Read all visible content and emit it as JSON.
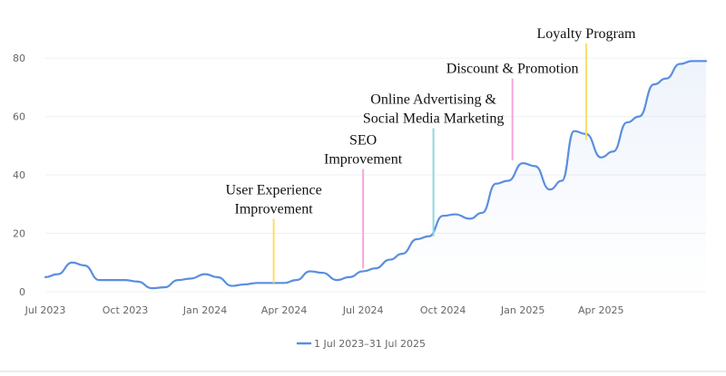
{
  "chart_data": {
    "type": "line",
    "x": [
      "2023-07-01",
      "2023-07-15",
      "2023-08-01",
      "2023-08-15",
      "2023-09-01",
      "2023-09-15",
      "2023-10-01",
      "2023-10-15",
      "2023-11-01",
      "2023-11-15",
      "2023-12-01",
      "2023-12-15",
      "2024-01-01",
      "2024-01-15",
      "2024-02-01",
      "2024-02-15",
      "2024-03-01",
      "2024-03-15",
      "2024-04-01",
      "2024-04-15",
      "2024-05-01",
      "2024-05-15",
      "2024-06-01",
      "2024-06-15",
      "2024-07-01",
      "2024-07-15",
      "2024-08-01",
      "2024-08-15",
      "2024-09-01",
      "2024-09-15",
      "2024-10-01",
      "2024-10-15",
      "2024-11-01",
      "2024-11-15",
      "2024-12-01",
      "2024-12-15",
      "2025-01-01",
      "2025-01-15",
      "2025-02-01",
      "2025-02-15",
      "2025-03-01",
      "2025-03-15",
      "2025-04-01",
      "2025-04-15",
      "2025-05-01",
      "2025-05-15",
      "2025-06-01",
      "2025-06-15",
      "2025-07-01",
      "2025-07-15",
      "2025-07-31"
    ],
    "series": [
      {
        "name": "1 Jul 2023–31 Jul 2025",
        "values": [
          5,
          6,
          10,
          9,
          4,
          4,
          4,
          3.5,
          1.2,
          1.5,
          4,
          4.5,
          6,
          5,
          2,
          2.5,
          3,
          3,
          3,
          4,
          7,
          6.5,
          4,
          5,
          7,
          8,
          11,
          13,
          18,
          19,
          26,
          26.5,
          25,
          27,
          37,
          38,
          44,
          43,
          35,
          38,
          55,
          54,
          46,
          48,
          58,
          60,
          71,
          73,
          78,
          79,
          79
        ]
      }
    ],
    "x_ticks": [
      "Jul 2023",
      "Oct 2023",
      "Jan 2024",
      "Apr 2024",
      "Jul 2024",
      "Oct 2024",
      "Jan 2025",
      "Apr 2025"
    ],
    "x_tick_dates": [
      "2023-07-01",
      "2023-10-01",
      "2024-01-01",
      "2024-04-01",
      "2024-07-01",
      "2024-10-01",
      "2025-01-01",
      "2025-04-01"
    ],
    "y_ticks": [
      0,
      20,
      40,
      60,
      80
    ],
    "ylim": [
      0,
      85
    ],
    "xlim": [
      "2023-07-01",
      "2025-07-31"
    ],
    "grid": "horizontal",
    "legend_position": "bottom-center",
    "annotations": [
      {
        "lines": [
          "User Experience",
          "Improvement"
        ],
        "date": "2024-03-20",
        "from": 3,
        "to": 25,
        "color": "#f9dd6e"
      },
      {
        "lines": [
          "SEO",
          "Improvement"
        ],
        "date": "2024-07-01",
        "from": 8,
        "to": 42,
        "color": "#f4a6dc"
      },
      {
        "lines": [
          "Online Advertising &",
          "Social Media Marketing"
        ],
        "date": "2024-09-20",
        "from": 19,
        "to": 56,
        "color": "#8fd8e0"
      },
      {
        "lines": [
          "Discount & Promotion"
        ],
        "date": "2024-12-20",
        "from": 45,
        "to": 73,
        "color": "#f4a6dc"
      },
      {
        "lines": [
          "Loyalty Program"
        ],
        "date": "2025-03-15",
        "from": 52,
        "to": 85,
        "color": "#f9dd6e"
      }
    ],
    "line_color": "#5b8ee0"
  }
}
